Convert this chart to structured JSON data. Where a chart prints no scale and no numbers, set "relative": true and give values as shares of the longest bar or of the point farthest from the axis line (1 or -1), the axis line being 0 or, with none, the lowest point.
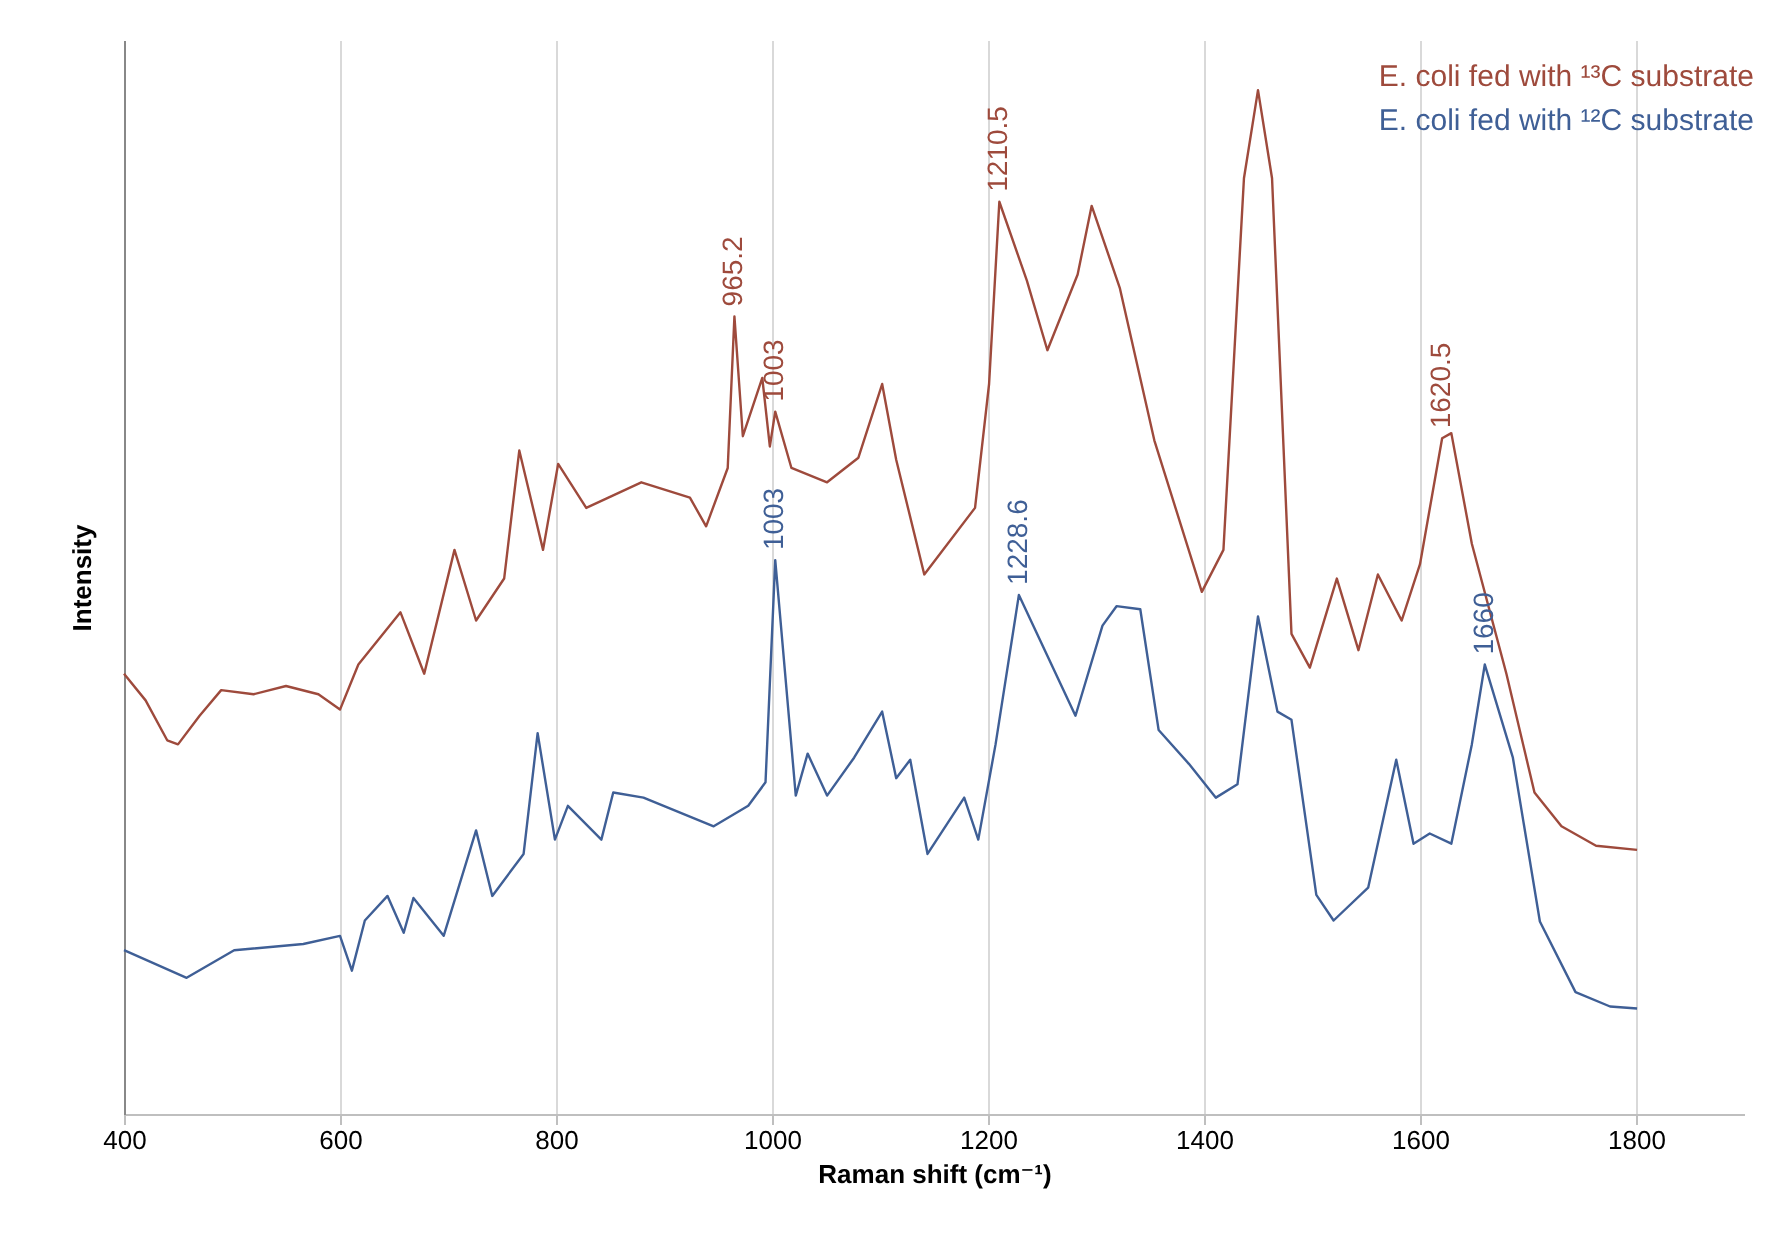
{
  "chart_data": {
    "type": "line",
    "relative": true,
    "xlabel": "Raman shift (cm⁻¹)",
    "ylabel": "Intensity",
    "xlim": [
      400,
      1900
    ],
    "xticks": [
      400,
      600,
      800,
      1000,
      1200,
      1400,
      1600,
      1800
    ],
    "grid": "x",
    "legend": "top right",
    "line_style": "solid",
    "marker": "none",
    "series": [
      {
        "name": "E. coli fed with ¹³C substrate",
        "color": "#9e4a3c",
        "x": [
          400,
          420,
          440,
          450,
          470,
          490,
          520,
          550,
          580,
          600,
          617,
          656,
          678,
          706,
          726,
          752,
          766,
          788,
          802,
          828,
          879,
          924,
          939,
          959,
          965.2,
          973,
          991,
          998,
          1003,
          1018,
          1051,
          1080,
          1102,
          1115,
          1141,
          1188,
          1201,
          1210.5,
          1236,
          1255,
          1283,
          1296,
          1322,
          1354,
          1398,
          1418,
          1437,
          1450,
          1463,
          1481,
          1498,
          1523,
          1543,
          1561,
          1583,
          1600,
          1620.5,
          1629,
          1648,
          1680,
          1706,
          1731,
          1763,
          1801
        ],
        "values": [
          0.43,
          0.404,
          0.365,
          0.361,
          0.389,
          0.414,
          0.41,
          0.418,
          0.41,
          0.395,
          0.439,
          0.49,
          0.43,
          0.551,
          0.482,
          0.523,
          0.648,
          0.551,
          0.635,
          0.592,
          0.617,
          0.602,
          0.574,
          0.631,
          0.779,
          0.662,
          0.719,
          0.652,
          0.686,
          0.631,
          0.617,
          0.641,
          0.713,
          0.639,
          0.527,
          0.592,
          0.713,
          0.891,
          0.814,
          0.746,
          0.82,
          0.887,
          0.807,
          0.658,
          0.51,
          0.551,
          0.914,
          1,
          0.914,
          0.469,
          0.436,
          0.523,
          0.453,
          0.527,
          0.482,
          0.537,
          0.66,
          0.665,
          0.557,
          0.43,
          0.314,
          0.281,
          0.262,
          0.258
        ]
      },
      {
        "name": "E. coli fed with ¹²C substrate",
        "color": "#3f5f96",
        "x": [
          400,
          458,
          502,
          566,
          600,
          611,
          623,
          644,
          659,
          668,
          696,
          726,
          741,
          770,
          783,
          799,
          811,
          842,
          853,
          881,
          946,
          978,
          994,
          1003,
          1022,
          1033,
          1051,
          1076,
          1102,
          1115,
          1128,
          1144,
          1178,
          1191,
          1207,
          1228.6,
          1281,
          1306,
          1319,
          1341,
          1358,
          1386,
          1411,
          1431,
          1450,
          1468,
          1481,
          1504,
          1520,
          1552,
          1578,
          1594,
          1609,
          1629,
          1648,
          1660,
          1686,
          1711,
          1744,
          1776,
          1801
        ],
        "values": [
          0.16,
          0.133,
          0.16,
          0.166,
          0.174,
          0.14,
          0.189,
          0.213,
          0.177,
          0.211,
          0.174,
          0.277,
          0.213,
          0.254,
          0.372,
          0.268,
          0.301,
          0.268,
          0.314,
          0.309,
          0.281,
          0.301,
          0.324,
          0.541,
          0.311,
          0.352,
          0.311,
          0.348,
          0.393,
          0.328,
          0.346,
          0.254,
          0.309,
          0.268,
          0.361,
          0.507,
          0.389,
          0.477,
          0.496,
          0.493,
          0.375,
          0.342,
          0.309,
          0.322,
          0.486,
          0.393,
          0.385,
          0.214,
          0.189,
          0.221,
          0.346,
          0.264,
          0.274,
          0.264,
          0.361,
          0.439,
          0.348,
          0.188,
          0.119,
          0.105,
          0.103
        ]
      }
    ],
    "annotations": [
      {
        "text": "965.2",
        "x": 965.2,
        "y": 0.779
      },
      {
        "text": "1003",
        "x": 1003,
        "y": 0.686
      },
      {
        "text": "1210.5",
        "x": 1210.5,
        "y": 0.891
      },
      {
        "text": "1620.5",
        "x": 1620.5,
        "y": 0.66
      },
      {
        "text": "1003",
        "x": 1003,
        "y": 0.541
      },
      {
        "text": "1228.6",
        "x": 1228.6,
        "y": 0.507
      },
      {
        "text": "1660",
        "x": 1660,
        "y": 0.439
      }
    ]
  }
}
